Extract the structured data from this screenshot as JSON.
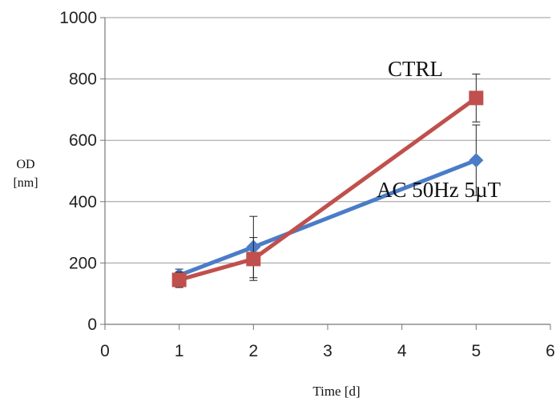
{
  "chart_data": {
    "type": "line",
    "xlabel": "Time [d]",
    "ylabel_line1": "OD",
    "ylabel_line2": "[nm]",
    "xlim": [
      0,
      6
    ],
    "ylim": [
      0,
      1000
    ],
    "x_ticks": [
      "0",
      "1",
      "2",
      "3",
      "4",
      "5",
      "6"
    ],
    "y_ticks": [
      "0",
      "200",
      "400",
      "600",
      "800",
      "1000"
    ],
    "grid": "horizontal",
    "series": [
      {
        "name": "AC 50Hz 5µT",
        "color": "#4a7cc7",
        "marker": "diamond",
        "x": [
          1,
          2,
          5
        ],
        "y": [
          160,
          252,
          535
        ],
        "err": [
          20,
          100,
          115
        ]
      },
      {
        "name": "CTRL",
        "color": "#c0504d",
        "marker": "square",
        "x": [
          1,
          2,
          5
        ],
        "y": [
          145,
          213,
          738
        ],
        "err": [
          25,
          70,
          78
        ]
      }
    ]
  }
}
